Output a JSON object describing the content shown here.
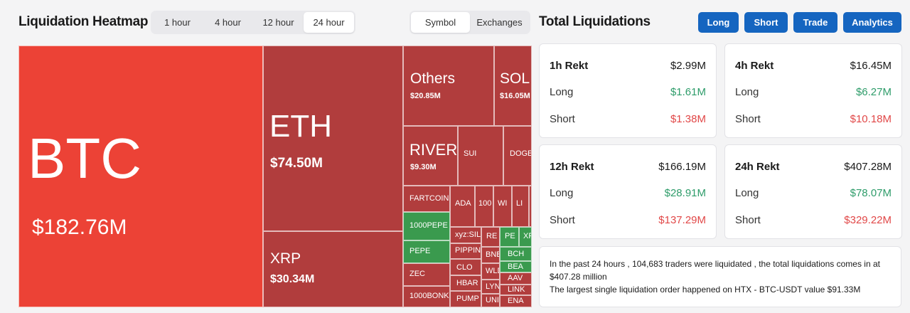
{
  "heatmap": {
    "title": "Liquidation Heatmap",
    "time_options": [
      "1 hour",
      "4 hour",
      "12 hour",
      "24 hour"
    ],
    "time_selected": "24 hour",
    "view_options": [
      "Symbol",
      "Exchanges"
    ],
    "view_selected": "Symbol",
    "tiles": {
      "btc": {
        "symbol": "BTC",
        "value": "$182.76M"
      },
      "eth": {
        "symbol": "ETH",
        "value": "$74.50M"
      },
      "xrp": {
        "symbol": "XRP",
        "value": "$30.34M"
      },
      "others": {
        "symbol": "Others",
        "value": "$20.85M"
      },
      "sol": {
        "symbol": "SOL",
        "value": "$16.05M"
      },
      "river": {
        "symbol": "RIVER",
        "value": "$9.30M"
      },
      "sui": {
        "symbol": "SUI"
      },
      "doge": {
        "symbol": "DOGE"
      },
      "fartcoin": {
        "symbol": "FARTCOIN"
      },
      "ada": {
        "symbol": "ADA"
      },
      "t100": {
        "symbol": "100"
      },
      "wi": {
        "symbol": "WI"
      },
      "li": {
        "symbol": "LI"
      },
      "pepe1000": {
        "symbol": "1000PEPE"
      },
      "xyzsil": {
        "symbol": "xyz:SIL"
      },
      "re": {
        "symbol": "RE"
      },
      "pe": {
        "symbol": "PE"
      },
      "xp": {
        "symbol": "XP"
      },
      "pepe": {
        "symbol": "PEPE"
      },
      "pippin": {
        "symbol": "PIPPIN"
      },
      "bnb": {
        "symbol": "BNB"
      },
      "bch": {
        "symbol": "BCH"
      },
      "zec": {
        "symbol": "ZEC"
      },
      "clo": {
        "symbol": "CLO"
      },
      "wld": {
        "symbol": "WLD"
      },
      "bea": {
        "symbol": "BEA"
      },
      "hbar": {
        "symbol": "HBAR"
      },
      "lyn": {
        "symbol": "LYN"
      },
      "aav": {
        "symbol": "AAV"
      },
      "link": {
        "symbol": "LINK"
      },
      "bonk": {
        "symbol": "1000BONK"
      },
      "pump": {
        "symbol": "PUMP"
      },
      "uni": {
        "symbol": "UNI"
      },
      "ena": {
        "symbol": "ENA"
      }
    }
  },
  "totals": {
    "title": "Total Liquidations",
    "buttons": [
      "Long",
      "Short",
      "Trade",
      "Analytics"
    ],
    "long_label": "Long",
    "short_label": "Short",
    "cards": {
      "h1": {
        "label": "1h Rekt",
        "total": "$2.99M",
        "long": "$1.61M",
        "short": "$1.38M"
      },
      "h4": {
        "label": "4h Rekt",
        "total": "$16.45M",
        "long": "$6.27M",
        "short": "$10.18M"
      },
      "h12": {
        "label": "12h Rekt",
        "total": "$166.19M",
        "long": "$28.91M",
        "short": "$137.29M"
      },
      "h24": {
        "label": "24h Rekt",
        "total": "$407.28M",
        "long": "$78.07M",
        "short": "$329.22M"
      }
    },
    "summary_line1": "In the past 24 hours , 104,683 traders were liquidated , the total liquidations comes in at $407.28 million",
    "summary_line2": "The largest single liquidation order happened on HTX - BTC-USDT value $91.33M"
  },
  "colors": {
    "btc_tile": "#ec4236",
    "red_tile": "#b13d3d",
    "green_tile": "#3a9a4e",
    "accent_button": "#1565c0",
    "long_text": "#2e9c6a",
    "short_text": "#e14848"
  }
}
